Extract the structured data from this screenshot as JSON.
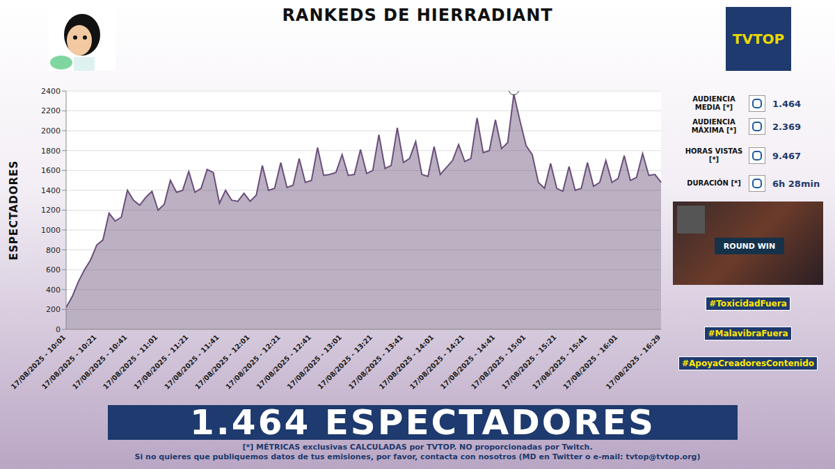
{
  "chart_data": {
    "type": "area",
    "title": "RANKEDS DE HIERRADIANT",
    "y_label": "ESPECTADORES",
    "categories": [
      "17/08/2025 - 10:01",
      null,
      null,
      null,
      null,
      "17/08/2025 - 10:21",
      null,
      null,
      null,
      null,
      "17/08/2025 - 10:41",
      null,
      null,
      null,
      null,
      "17/08/2025 - 11:01",
      null,
      null,
      null,
      null,
      "17/08/2025 - 11:21",
      null,
      null,
      null,
      null,
      "17/08/2025 - 11:41",
      null,
      null,
      null,
      null,
      "17/08/2025 - 12:01",
      null,
      null,
      null,
      null,
      "17/08/2025 - 12:21",
      null,
      null,
      null,
      null,
      "17/08/2025 - 12:41",
      null,
      null,
      null,
      null,
      "17/08/2025 - 13:01",
      null,
      null,
      null,
      null,
      "17/08/2025 - 13:21",
      null,
      null,
      null,
      null,
      "17/08/2025 - 13:41",
      null,
      null,
      null,
      null,
      "17/08/2025 - 14:01",
      null,
      null,
      null,
      null,
      "17/08/2025 - 14:21",
      null,
      null,
      null,
      null,
      "17/08/2025 - 14:41",
      null,
      null,
      null,
      null,
      "17/08/2025 - 15:01",
      null,
      null,
      null,
      null,
      "17/08/2025 - 15:21",
      null,
      null,
      null,
      null,
      "17/08/2025 - 15:41",
      null,
      null,
      null,
      null,
      "17/08/2025 - 16:01",
      null,
      null,
      null,
      null,
      null,
      null,
      "17/08/2025 - 16:29"
    ],
    "values": [
      220,
      330,
      480,
      600,
      700,
      850,
      900,
      1170,
      1090,
      1130,
      1400,
      1300,
      1250,
      1330,
      1390,
      1200,
      1260,
      1500,
      1380,
      1400,
      1590,
      1380,
      1420,
      1610,
      1580,
      1270,
      1400,
      1300,
      1290,
      1370,
      1290,
      1350,
      1650,
      1400,
      1420,
      1680,
      1430,
      1450,
      1720,
      1480,
      1500,
      1830,
      1550,
      1560,
      1580,
      1760,
      1550,
      1560,
      1810,
      1570,
      1600,
      1960,
      1620,
      1650,
      2030,
      1680,
      1720,
      1890,
      1560,
      1540,
      1840,
      1560,
      1630,
      1700,
      1860,
      1690,
      1720,
      2130,
      1780,
      1800,
      2110,
      1820,
      1880,
      2369,
      2100,
      1850,
      1760,
      1480,
      1420,
      1670,
      1420,
      1390,
      1640,
      1400,
      1420,
      1680,
      1440,
      1480,
      1700,
      1480,
      1520,
      1750,
      1500,
      1530,
      1770,
      1550,
      1560,
      1480
    ],
    "color": "#6a4f7a",
    "ylim": [
      0,
      2400
    ],
    "yticks": [
      0,
      200,
      400,
      600,
      800,
      1000,
      1200,
      1400,
      1600,
      1800,
      2000,
      2200,
      2400
    ],
    "grid": true
  },
  "logo": "TVTOP",
  "stats": [
    {
      "label": "AUDIENCIA MEDIA [*]",
      "value": "1.464"
    },
    {
      "label": "AUDIENCIA MÁXIMA [*]",
      "value": "2.369"
    },
    {
      "label": "HORAS VISTAS [*]",
      "value": "9.467"
    },
    {
      "label": "DURACIÓN [*]",
      "value": "6h 28min"
    }
  ],
  "thumbnail_text": "ROUND WIN",
  "hashtags": [
    "#ToxicidadFuera",
    "#MalavibraFuera",
    "#ApoyaCreadoresContenido"
  ],
  "banner": "1.464 ESPECTADORES",
  "footer": [
    "[*] MÉTRICAS exclusivas CALCULADAS por TVTOP. NO proporcionadas por Twitch.",
    "Si no quieres que publiquemos datos de tus emisiones, por favor, contacta con nosotros (MD en Twitter o e-mail: tvtop@tvtop.org)"
  ]
}
